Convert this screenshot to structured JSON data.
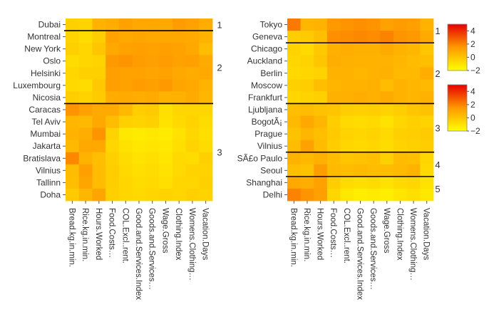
{
  "chart_data": [
    {
      "type": "heatmap",
      "columns": [
        "Bread.kg.in.min.",
        "Rice.kg.in.min.",
        "Hours.Worked",
        "Food.Costs…",
        "COL.Excl..rent.",
        "Good.and.Services.Index",
        "Goods.and.Services…",
        "Wage.Gross",
        "Clothing.Index",
        "Womens.Clothing…",
        "Vacation.Days"
      ],
      "row_labels": [
        "Dubai",
        "Montreal",
        "New York",
        "Oslo",
        "Helsinki",
        "Luxembourg",
        "Nicosia",
        "Caracas",
        "Tel Aviv",
        "Mumbai",
        "Jakarta",
        "Bratislava",
        "Vilnius",
        "Tallinn",
        "Doha"
      ],
      "clusters": [
        {
          "label": "1",
          "rows": 1
        },
        {
          "label": "2",
          "rows": 6
        },
        {
          "label": "3",
          "rows": 8
        }
      ],
      "values": [
        [
          -0.4,
          -0.5,
          0.6,
          0.8,
          1.2,
          1.0,
          1.0,
          0.9,
          1.4,
          1.2,
          0.8
        ],
        [
          -0.5,
          -0.8,
          -0.3,
          1.2,
          1.0,
          1.1,
          1.0,
          1.0,
          1.0,
          0.9,
          0.6
        ],
        [
          -0.4,
          -0.6,
          0.0,
          1.0,
          1.2,
          1.3,
          1.2,
          1.3,
          1.2,
          1.0,
          0.3
        ],
        [
          -0.8,
          -0.6,
          -0.5,
          1.5,
          1.6,
          1.4,
          1.3,
          1.4,
          1.2,
          1.3,
          0.9
        ],
        [
          -0.6,
          -0.4,
          -0.4,
          1.3,
          1.2,
          1.2,
          1.1,
          1.2,
          1.0,
          0.8,
          1.0
        ],
        [
          -0.7,
          -0.8,
          -0.1,
          1.3,
          1.2,
          1.4,
          1.3,
          1.5,
          1.1,
          1.0,
          0.6
        ],
        [
          -0.3,
          -0.5,
          -0.2,
          0.8,
          0.9,
          0.8,
          0.9,
          0.6,
          0.7,
          0.9,
          0.5
        ],
        [
          1.6,
          1.2,
          0.9,
          0.9,
          0.4,
          -0.3,
          -0.2,
          -0.9,
          -0.6,
          -0.6,
          -0.6
        ],
        [
          0.5,
          0.4,
          1.0,
          0.3,
          -0.4,
          -0.5,
          -0.4,
          -1.0,
          -0.7,
          -0.5,
          -0.8
        ],
        [
          0.6,
          0.8,
          1.6,
          -0.5,
          -1.2,
          -1.3,
          -1.2,
          -1.3,
          -1.0,
          -0.6,
          -0.9
        ],
        [
          0.4,
          1.0,
          1.0,
          -0.6,
          -1.0,
          -1.2,
          -1.1,
          -1.2,
          -0.9,
          -0.5,
          -0.8
        ],
        [
          1.9,
          0.6,
          0.2,
          -0.4,
          -0.8,
          -1.0,
          -0.9,
          -1.1,
          -0.7,
          -0.8,
          -0.4
        ],
        [
          0.3,
          1.3,
          0.3,
          -0.3,
          -0.7,
          -0.9,
          -0.8,
          -1.0,
          -0.7,
          -0.5,
          -0.5
        ],
        [
          0.2,
          1.1,
          0.3,
          -0.3,
          -0.6,
          -0.8,
          -0.7,
          -0.9,
          -0.6,
          -0.6,
          -0.4
        ],
        [
          -0.2,
          0.5,
          1.1,
          -0.4,
          -0.6,
          -0.7,
          -0.6,
          -0.5,
          -0.6,
          -0.4,
          -0.5
        ]
      ]
    },
    {
      "type": "heatmap",
      "columns": [
        "Bread.kg.in.min.",
        "Rice.kg.in.min.",
        "Hours.Worked",
        "Food.Costs…",
        "COL.Excl..rent.",
        "Good.and.Services.Index",
        "Goods.and.Services…",
        "Wage.Gross",
        "Clothing.Index",
        "Womens.Clothing…",
        "Vacation.Days"
      ],
      "row_labels": [
        "Tokyo",
        "Geneva",
        "Chicago",
        "Auckland",
        "Berlin",
        "Moscow",
        "Frankfurt",
        "Ljubljana",
        "BogotÃ¡",
        "Prague",
        "Vilnius",
        "SÃ£o Paulo",
        "Seoul",
        "Shanghai",
        "Delhi"
      ],
      "clusters": [
        {
          "label": "1",
          "rows": 2
        },
        {
          "label": "2",
          "rows": 5
        },
        {
          "label": "3",
          "rows": 4
        },
        {
          "label": "4",
          "rows": 2
        },
        {
          "label": "5",
          "rows": 2
        }
      ],
      "values": [
        [
          2.2,
          0.5,
          0.6,
          1.5,
          1.6,
          1.7,
          1.6,
          1.2,
          1.4,
          1.3,
          0.6
        ],
        [
          -0.3,
          -0.2,
          0.2,
          1.7,
          1.8,
          1.9,
          1.8,
          2.0,
          1.6,
          1.5,
          0.9
        ],
        [
          -0.5,
          -0.7,
          -0.1,
          0.7,
          0.8,
          0.7,
          0.7,
          0.9,
          0.6,
          0.5,
          0.0
        ],
        [
          -0.6,
          -0.5,
          0.0,
          0.8,
          0.7,
          0.6,
          0.6,
          0.6,
          0.5,
          0.3,
          0.2
        ],
        [
          -0.7,
          -0.6,
          -0.5,
          0.6,
          0.6,
          0.5,
          0.6,
          0.7,
          0.4,
          0.4,
          0.8
        ],
        [
          -0.4,
          -0.3,
          0.2,
          0.5,
          0.6,
          0.6,
          0.7,
          0.3,
          0.6,
          0.5,
          0.4
        ],
        [
          -0.6,
          -0.5,
          -0.4,
          0.7,
          0.7,
          0.8,
          0.7,
          0.9,
          0.6,
          0.5,
          0.7
        ],
        [
          0.2,
          0.3,
          0.1,
          0.0,
          -0.3,
          -0.4,
          -0.3,
          -0.5,
          -0.3,
          0.0,
          0.1
        ],
        [
          0.4,
          1.0,
          0.5,
          -0.3,
          -0.7,
          -0.8,
          -0.7,
          -1.0,
          -0.6,
          -0.4,
          -0.5
        ],
        [
          0.1,
          0.5,
          0.2,
          -0.2,
          -0.5,
          -0.6,
          -0.5,
          -0.7,
          -0.4,
          -0.3,
          -0.2
        ],
        [
          0.3,
          1.2,
          0.3,
          -0.3,
          -0.6,
          -0.7,
          -0.6,
          -0.8,
          -0.5,
          -0.4,
          -0.3
        ],
        [
          0.6,
          0.4,
          0.7,
          0.3,
          0.0,
          0.1,
          0.2,
          -0.4,
          0.3,
          0.2,
          -0.6
        ],
        [
          0.2,
          0.1,
          1.4,
          0.4,
          0.3,
          0.4,
          0.3,
          0.3,
          0.4,
          0.6,
          -0.7
        ],
        [
          1.0,
          0.8,
          1.2,
          -0.3,
          -0.8,
          -0.9,
          -0.8,
          -1.0,
          -0.7,
          -0.6,
          -1.0
        ],
        [
          2.0,
          1.6,
          1.3,
          -0.6,
          -1.2,
          -1.4,
          -1.3,
          -1.4,
          -1.1,
          -0.9,
          -1.2
        ]
      ]
    }
  ],
  "colorbars": [
    {
      "ticks": [
        4,
        2,
        0,
        -2
      ],
      "range": [
        -2,
        5
      ]
    },
    {
      "ticks": [
        4,
        2,
        0,
        -2
      ],
      "range": [
        -2,
        5
      ]
    }
  ],
  "colors": {
    "low": "#ffff00",
    "mid": "#ff9900",
    "high": "#e60000",
    "separator": "#000000"
  }
}
